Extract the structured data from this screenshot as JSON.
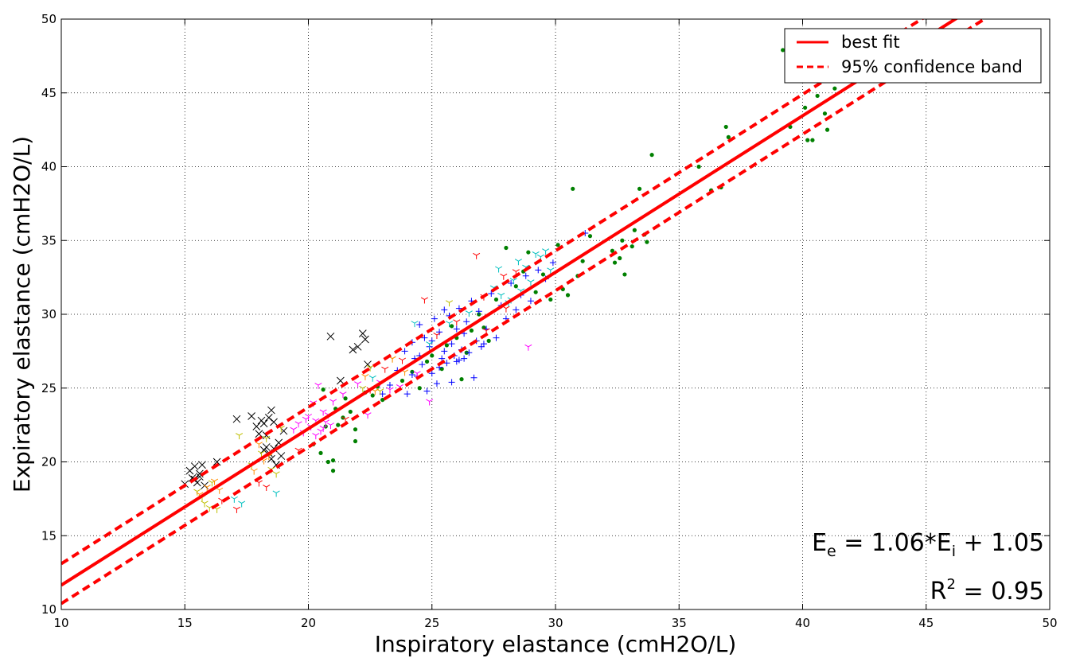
{
  "chart_data": {
    "type": "scatter",
    "title": "",
    "xlabel": "Inspiratory elastance (cmH2O/L)",
    "ylabel": "Expiratory elastance (cmH2O/L)",
    "xlim": [
      10,
      50
    ],
    "ylim": [
      10,
      50
    ],
    "xticks": [
      "10",
      "15",
      "20",
      "25",
      "30",
      "35",
      "40",
      "45",
      "50"
    ],
    "yticks": [
      "10",
      "15",
      "20",
      "25",
      "30",
      "35",
      "40",
      "45",
      "50"
    ],
    "grid": true,
    "legend_position": "top-right",
    "legend": [
      {
        "label": "best fit",
        "style": "solid",
        "color": "#ff0000"
      },
      {
        "label": "95% confidence band",
        "style": "dashed",
        "color": "#ff0000"
      }
    ],
    "fit": {
      "slope": 1.06,
      "intercept": 1.05,
      "band_lower_at_x10": 10.4,
      "band_upper_at_x10": 13.1
    },
    "annotations": {
      "equation_prefix": "E",
      "equation_sub_e": "e",
      "equation_mid": " = 1.06*E",
      "equation_sub_i": "i",
      "equation_suffix": " + 1.05",
      "r2_prefix": "R",
      "r2_sup": "2",
      "r2_suffix": " = 0.95"
    },
    "series": [
      {
        "marker": "x",
        "color": "#000000",
        "points": [
          [
            15.0,
            18.5
          ],
          [
            15.2,
            19.4
          ],
          [
            15.3,
            18.9
          ],
          [
            15.4,
            19.7
          ],
          [
            15.5,
            18.6
          ],
          [
            15.6,
            19.2
          ],
          [
            15.7,
            19.8
          ],
          [
            15.8,
            18.4
          ],
          [
            15.4,
            18.8
          ],
          [
            15.6,
            19.0
          ],
          [
            16.3,
            20.0
          ],
          [
            17.1,
            22.9
          ],
          [
            17.7,
            23.1
          ],
          [
            17.9,
            22.4
          ],
          [
            18.1,
            22.8
          ],
          [
            18.2,
            22.6
          ],
          [
            18.3,
            21.8
          ],
          [
            18.4,
            23.0
          ],
          [
            18.5,
            23.5
          ],
          [
            18.6,
            22.7
          ],
          [
            18.0,
            21.9
          ],
          [
            18.3,
            21.0
          ],
          [
            18.4,
            20.6
          ],
          [
            18.6,
            20.9
          ],
          [
            18.8,
            21.3
          ],
          [
            18.9,
            20.4
          ],
          [
            19.0,
            22.1
          ],
          [
            18.5,
            20.2
          ],
          [
            18.7,
            19.8
          ],
          [
            18.2,
            20.8
          ],
          [
            20.9,
            28.5
          ],
          [
            21.3,
            25.5
          ],
          [
            21.8,
            27.6
          ],
          [
            22.0,
            27.8
          ],
          [
            22.2,
            28.7
          ],
          [
            22.3,
            28.3
          ],
          [
            22.4,
            26.6
          ]
        ]
      },
      {
        "marker": "dot",
        "color": "#008000",
        "points": [
          [
            20.2,
            21.2
          ],
          [
            20.5,
            20.6
          ],
          [
            20.7,
            22.4
          ],
          [
            20.8,
            20.0
          ],
          [
            21.0,
            19.4
          ],
          [
            21.0,
            20.1
          ],
          [
            21.2,
            22.5
          ],
          [
            21.4,
            23.0
          ],
          [
            21.5,
            24.3
          ],
          [
            21.7,
            23.4
          ],
          [
            21.9,
            22.2
          ],
          [
            21.9,
            21.4
          ],
          [
            22.3,
            24.7
          ],
          [
            22.6,
            24.5
          ],
          [
            22.8,
            25.1
          ],
          [
            23.0,
            24.2
          ],
          [
            20.6,
            24.9
          ],
          [
            21.1,
            23.6
          ],
          [
            23.8,
            25.5
          ],
          [
            24.2,
            26.1
          ],
          [
            24.5,
            25.0
          ],
          [
            24.8,
            26.8
          ],
          [
            25.0,
            27.2
          ],
          [
            25.4,
            26.3
          ],
          [
            25.6,
            27.9
          ],
          [
            25.8,
            29.2
          ],
          [
            26.0,
            28.4
          ],
          [
            26.2,
            25.6
          ],
          [
            26.4,
            27.4
          ],
          [
            26.6,
            28.9
          ],
          [
            26.9,
            30.0
          ],
          [
            27.1,
            29.1
          ],
          [
            27.3,
            28.2
          ],
          [
            27.6,
            31.0
          ],
          [
            28.0,
            34.5
          ],
          [
            28.4,
            31.9
          ],
          [
            28.7,
            32.9
          ],
          [
            28.9,
            34.2
          ],
          [
            29.2,
            31.5
          ],
          [
            29.5,
            32.7
          ],
          [
            29.8,
            31.0
          ],
          [
            30.1,
            34.7
          ],
          [
            30.3,
            31.7
          ],
          [
            30.5,
            31.3
          ],
          [
            30.7,
            38.5
          ],
          [
            30.9,
            32.6
          ],
          [
            31.1,
            33.6
          ],
          [
            31.4,
            35.3
          ],
          [
            32.3,
            34.3
          ],
          [
            32.4,
            33.5
          ],
          [
            32.6,
            33.8
          ],
          [
            32.7,
            35.0
          ],
          [
            32.8,
            32.7
          ],
          [
            33.1,
            34.6
          ],
          [
            33.2,
            35.7
          ],
          [
            33.4,
            38.5
          ],
          [
            33.6,
            35.4
          ],
          [
            33.7,
            34.9
          ],
          [
            33.9,
            40.8
          ],
          [
            35.8,
            40.0
          ],
          [
            36.3,
            38.4
          ],
          [
            36.7,
            38.6
          ],
          [
            36.9,
            42.7
          ],
          [
            37.0,
            42.0
          ],
          [
            39.2,
            47.9
          ],
          [
            39.5,
            42.7
          ],
          [
            40.1,
            44.0
          ],
          [
            40.2,
            41.8
          ],
          [
            40.4,
            41.8
          ],
          [
            40.6,
            44.8
          ],
          [
            40.9,
            43.6
          ],
          [
            41.0,
            42.5
          ],
          [
            41.3,
            45.3
          ],
          [
            41.5,
            47.4
          ]
        ]
      },
      {
        "marker": "plus",
        "color": "#0000ff",
        "points": [
          [
            23.0,
            24.6
          ],
          [
            23.3,
            25.2
          ],
          [
            23.6,
            26.2
          ],
          [
            23.9,
            27.5
          ],
          [
            24.0,
            24.6
          ],
          [
            24.2,
            28.1
          ],
          [
            24.3,
            27.0
          ],
          [
            24.4,
            25.8
          ],
          [
            24.5,
            29.3
          ],
          [
            24.6,
            26.6
          ],
          [
            24.7,
            28.4
          ],
          [
            24.8,
            24.8
          ],
          [
            24.9,
            27.8
          ],
          [
            25.0,
            26.0
          ],
          [
            25.1,
            29.7
          ],
          [
            25.2,
            25.3
          ],
          [
            25.3,
            28.8
          ],
          [
            25.4,
            27.0
          ],
          [
            25.5,
            30.3
          ],
          [
            25.6,
            26.7
          ],
          [
            25.7,
            29.9
          ],
          [
            25.8,
            28.0
          ],
          [
            25.9,
            27.2
          ],
          [
            26.0,
            29.0
          ],
          [
            26.1,
            30.4
          ],
          [
            26.2,
            27.6
          ],
          [
            26.3,
            28.7
          ],
          [
            26.4,
            29.5
          ],
          [
            26.5,
            27.4
          ],
          [
            26.6,
            30.9
          ],
          [
            26.7,
            25.7
          ],
          [
            26.8,
            28.2
          ],
          [
            26.9,
            30.2
          ],
          [
            27.0,
            27.8
          ],
          [
            27.2,
            29.0
          ],
          [
            27.4,
            31.4
          ],
          [
            27.6,
            28.4
          ],
          [
            27.8,
            30.6
          ],
          [
            28.0,
            29.7
          ],
          [
            28.2,
            32.1
          ],
          [
            28.4,
            30.3
          ],
          [
            28.6,
            31.3
          ],
          [
            28.8,
            32.6
          ],
          [
            29.0,
            30.9
          ],
          [
            29.3,
            33.0
          ],
          [
            29.6,
            32.4
          ],
          [
            29.9,
            33.5
          ],
          [
            25.0,
            28.2
          ],
          [
            25.5,
            27.5
          ],
          [
            26.0,
            26.8
          ],
          [
            24.5,
            27.2
          ],
          [
            25.3,
            26.4
          ],
          [
            26.3,
            27.0
          ],
          [
            27.1,
            28.0
          ],
          [
            26.1,
            26.9
          ],
          [
            25.8,
            25.4
          ],
          [
            24.2,
            25.9
          ],
          [
            31.2,
            35.5
          ]
        ]
      },
      {
        "marker": "tri",
        "color": "#ff00ff",
        "points": [
          [
            19.4,
            22.2
          ],
          [
            19.6,
            22.6
          ],
          [
            19.8,
            22.0
          ],
          [
            20.0,
            23.1
          ],
          [
            20.1,
            22.4
          ],
          [
            20.2,
            24.0
          ],
          [
            20.3,
            22.8
          ],
          [
            20.4,
            25.2
          ],
          [
            20.5,
            22.1
          ],
          [
            20.6,
            23.4
          ],
          [
            20.7,
            22.7
          ],
          [
            20.8,
            23.2
          ],
          [
            20.9,
            22.5
          ],
          [
            21.0,
            24.1
          ],
          [
            19.9,
            22.9
          ],
          [
            20.3,
            21.8
          ],
          [
            20.6,
            22.3
          ],
          [
            21.4,
            24.6
          ],
          [
            22.0,
            25.3
          ],
          [
            22.4,
            23.2
          ],
          [
            22.9,
            25.4
          ],
          [
            23.3,
            24.9
          ],
          [
            23.7,
            25.1
          ],
          [
            24.9,
            24.1
          ],
          [
            28.9,
            27.8
          ],
          [
            24.4,
            26.0
          ]
        ]
      },
      {
        "marker": "tri",
        "color": "#ff0000",
        "points": [
          [
            18.0,
            18.6
          ],
          [
            18.3,
            18.3
          ],
          [
            19.6,
            20.8
          ],
          [
            21.5,
            22.9
          ],
          [
            22.5,
            24.9
          ],
          [
            23.1,
            26.3
          ],
          [
            23.8,
            26.9
          ],
          [
            24.7,
            31.0
          ],
          [
            26.8,
            34.0
          ],
          [
            27.1,
            31.2
          ],
          [
            27.9,
            32.6
          ],
          [
            28.4,
            32.9
          ],
          [
            16.5,
            17.4
          ],
          [
            17.1,
            16.8
          ],
          [
            26.0,
            29.5
          ],
          [
            25.2,
            28.6
          ],
          [
            28.0,
            30.4
          ],
          [
            27.2,
            28.9
          ]
        ]
      },
      {
        "marker": "tri",
        "color": "#00bfbf",
        "points": [
          [
            17.0,
            17.5
          ],
          [
            17.3,
            17.2
          ],
          [
            18.7,
            17.9
          ],
          [
            22.6,
            25.7
          ],
          [
            24.3,
            29.4
          ],
          [
            27.7,
            33.1
          ],
          [
            28.2,
            31.0
          ],
          [
            28.5,
            33.6
          ],
          [
            28.8,
            33.2
          ],
          [
            29.0,
            32.2
          ],
          [
            29.2,
            34.1
          ],
          [
            29.4,
            33.9
          ],
          [
            29.6,
            34.3
          ],
          [
            29.8,
            33.0
          ],
          [
            28.6,
            31.6
          ],
          [
            28.3,
            32.3
          ],
          [
            27.5,
            31.8
          ],
          [
            26.5,
            30.1
          ],
          [
            25.7,
            29.4
          ],
          [
            24.9,
            28.0
          ],
          [
            27.8,
            31.3
          ],
          [
            28.1,
            30.8
          ]
        ]
      },
      {
        "marker": "tri",
        "color": "#bfbf00",
        "points": [
          [
            15.5,
            18.0
          ],
          [
            15.8,
            17.2
          ],
          [
            16.0,
            16.9
          ],
          [
            16.3,
            16.8
          ],
          [
            17.2,
            21.8
          ],
          [
            17.7,
            19.8
          ],
          [
            18.1,
            20.6
          ],
          [
            18.3,
            21.6
          ],
          [
            18.5,
            19.5
          ],
          [
            18.7,
            19.2
          ],
          [
            18.9,
            22.3
          ],
          [
            22.2,
            25.0
          ],
          [
            22.5,
            26.4
          ],
          [
            22.9,
            24.8
          ],
          [
            23.4,
            27.0
          ],
          [
            25.7,
            30.8
          ],
          [
            16.1,
            18.6
          ],
          [
            15.7,
            17.6
          ]
        ]
      },
      {
        "marker": "tri",
        "color": "#ff8c00",
        "points": [
          [
            15.6,
            17.8
          ],
          [
            15.9,
            18.3
          ],
          [
            16.2,
            18.7
          ],
          [
            16.4,
            18.1
          ],
          [
            17.8,
            19.4
          ],
          [
            18.2,
            20.1
          ],
          [
            18.4,
            20.4
          ],
          [
            18.0,
            21.2
          ],
          [
            22.3,
            25.8
          ],
          [
            23.4,
            27.0
          ],
          [
            23.9,
            26.1
          ],
          [
            22.7,
            24.8
          ]
        ]
      }
    ]
  }
}
